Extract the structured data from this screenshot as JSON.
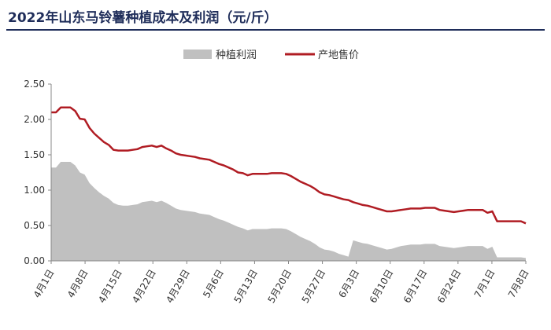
{
  "chart_data": {
    "type": "area+line",
    "title": "2022年山东马铃薯种植成本及利润（元/斤）",
    "legend_position": "top-center",
    "grid": false,
    "ylim": [
      0,
      2.5
    ],
    "y_ticks": [
      "0.00",
      "0.50",
      "1.00",
      "1.50",
      "2.00",
      "2.50"
    ],
    "x_tick_labels": [
      "4月1日",
      "4月8日",
      "4月15日",
      "4月22日",
      "4月29日",
      "5月6日",
      "5月13日",
      "5月20日",
      "5月27日",
      "6月3日",
      "6月10日",
      "6月17日",
      "6月24日",
      "7月1日",
      "7月8日"
    ],
    "series": [
      {
        "name": "种植利润",
        "kind": "area",
        "color": "#c0c0c0",
        "points": [
          [
            0,
            1.32
          ],
          [
            1,
            1.32
          ],
          [
            2,
            1.4
          ],
          [
            3,
            1.4
          ],
          [
            4,
            1.4
          ],
          [
            5,
            1.35
          ],
          [
            6,
            1.25
          ],
          [
            7,
            1.22
          ],
          [
            8,
            1.1
          ],
          [
            9,
            1.03
          ],
          [
            10,
            0.97
          ],
          [
            11,
            0.92
          ],
          [
            12,
            0.88
          ],
          [
            13,
            0.82
          ],
          [
            14,
            0.79
          ],
          [
            15,
            0.78
          ],
          [
            16,
            0.78
          ],
          [
            17,
            0.79
          ],
          [
            18,
            0.8
          ],
          [
            19,
            0.83
          ],
          [
            20,
            0.84
          ],
          [
            21,
            0.85
          ],
          [
            22,
            0.83
          ],
          [
            23,
            0.85
          ],
          [
            24,
            0.82
          ],
          [
            25,
            0.78
          ],
          [
            26,
            0.74
          ],
          [
            27,
            0.72
          ],
          [
            28,
            0.71
          ],
          [
            29,
            0.7
          ],
          [
            30,
            0.69
          ],
          [
            31,
            0.67
          ],
          [
            32,
            0.66
          ],
          [
            33,
            0.65
          ],
          [
            34,
            0.62
          ],
          [
            35,
            0.59
          ],
          [
            36,
            0.57
          ],
          [
            37,
            0.54
          ],
          [
            38,
            0.51
          ],
          [
            39,
            0.48
          ],
          [
            40,
            0.46
          ],
          [
            41,
            0.43
          ],
          [
            42,
            0.45
          ],
          [
            43,
            0.45
          ],
          [
            44,
            0.45
          ],
          [
            45,
            0.45
          ],
          [
            46,
            0.46
          ],
          [
            47,
            0.46
          ],
          [
            48,
            0.46
          ],
          [
            49,
            0.45
          ],
          [
            50,
            0.42
          ],
          [
            51,
            0.38
          ],
          [
            52,
            0.34
          ],
          [
            53,
            0.31
          ],
          [
            54,
            0.28
          ],
          [
            55,
            0.24
          ],
          [
            56,
            0.19
          ],
          [
            57,
            0.16
          ],
          [
            58,
            0.15
          ],
          [
            59,
            0.13
          ],
          [
            60,
            0.1
          ],
          [
            61,
            0.08
          ],
          [
            62,
            0.06
          ],
          [
            63,
            0.29
          ],
          [
            64,
            0.27
          ],
          [
            65,
            0.25
          ],
          [
            66,
            0.24
          ],
          [
            67,
            0.22
          ],
          [
            68,
            0.2
          ],
          [
            69,
            0.18
          ],
          [
            70,
            0.16
          ],
          [
            71,
            0.17
          ],
          [
            72,
            0.19
          ],
          [
            73,
            0.21
          ],
          [
            74,
            0.22
          ],
          [
            75,
            0.23
          ],
          [
            76,
            0.23
          ],
          [
            77,
            0.23
          ],
          [
            78,
            0.24
          ],
          [
            79,
            0.24
          ],
          [
            80,
            0.24
          ],
          [
            81,
            0.21
          ],
          [
            82,
            0.2
          ],
          [
            83,
            0.19
          ],
          [
            84,
            0.18
          ],
          [
            85,
            0.19
          ],
          [
            86,
            0.2
          ],
          [
            87,
            0.21
          ],
          [
            88,
            0.21
          ],
          [
            89,
            0.21
          ],
          [
            90,
            0.21
          ],
          [
            91,
            0.17
          ],
          [
            92,
            0.2
          ],
          [
            93,
            0.05
          ],
          [
            94,
            0.05
          ],
          [
            95,
            0.05
          ],
          [
            96,
            0.05
          ],
          [
            97,
            0.05
          ],
          [
            98,
            0.05
          ],
          [
            99,
            0.04
          ]
        ]
      },
      {
        "name": "产地售价",
        "kind": "line",
        "color": "#b01c23",
        "points": [
          [
            0,
            2.1
          ],
          [
            1,
            2.1
          ],
          [
            2,
            2.17
          ],
          [
            3,
            2.17
          ],
          [
            4,
            2.17
          ],
          [
            5,
            2.12
          ],
          [
            6,
            2.01
          ],
          [
            7,
            2.0
          ],
          [
            8,
            1.88
          ],
          [
            9,
            1.8
          ],
          [
            10,
            1.74
          ],
          [
            11,
            1.68
          ],
          [
            12,
            1.64
          ],
          [
            13,
            1.57
          ],
          [
            14,
            1.56
          ],
          [
            15,
            1.56
          ],
          [
            16,
            1.56
          ],
          [
            17,
            1.57
          ],
          [
            18,
            1.58
          ],
          [
            19,
            1.61
          ],
          [
            20,
            1.62
          ],
          [
            21,
            1.63
          ],
          [
            22,
            1.61
          ],
          [
            23,
            1.63
          ],
          [
            24,
            1.59
          ],
          [
            25,
            1.56
          ],
          [
            26,
            1.52
          ],
          [
            27,
            1.5
          ],
          [
            28,
            1.49
          ],
          [
            29,
            1.48
          ],
          [
            30,
            1.47
          ],
          [
            31,
            1.45
          ],
          [
            32,
            1.44
          ],
          [
            33,
            1.43
          ],
          [
            34,
            1.4
          ],
          [
            35,
            1.37
          ],
          [
            36,
            1.35
          ],
          [
            37,
            1.32
          ],
          [
            38,
            1.29
          ],
          [
            39,
            1.25
          ],
          [
            40,
            1.24
          ],
          [
            41,
            1.21
          ],
          [
            42,
            1.23
          ],
          [
            43,
            1.23
          ],
          [
            44,
            1.23
          ],
          [
            45,
            1.23
          ],
          [
            46,
            1.24
          ],
          [
            47,
            1.24
          ],
          [
            48,
            1.24
          ],
          [
            49,
            1.23
          ],
          [
            50,
            1.2
          ],
          [
            51,
            1.16
          ],
          [
            52,
            1.12
          ],
          [
            53,
            1.09
          ],
          [
            54,
            1.06
          ],
          [
            55,
            1.02
          ],
          [
            56,
            0.97
          ],
          [
            57,
            0.94
          ],
          [
            58,
            0.93
          ],
          [
            59,
            0.91
          ],
          [
            60,
            0.89
          ],
          [
            61,
            0.87
          ],
          [
            62,
            0.86
          ],
          [
            63,
            0.83
          ],
          [
            64,
            0.81
          ],
          [
            65,
            0.79
          ],
          [
            66,
            0.78
          ],
          [
            67,
            0.76
          ],
          [
            68,
            0.74
          ],
          [
            69,
            0.72
          ],
          [
            70,
            0.7
          ],
          [
            71,
            0.7
          ],
          [
            72,
            0.71
          ],
          [
            73,
            0.72
          ],
          [
            74,
            0.73
          ],
          [
            75,
            0.74
          ],
          [
            76,
            0.74
          ],
          [
            77,
            0.74
          ],
          [
            78,
            0.75
          ],
          [
            79,
            0.75
          ],
          [
            80,
            0.75
          ],
          [
            81,
            0.72
          ],
          [
            82,
            0.71
          ],
          [
            83,
            0.7
          ],
          [
            84,
            0.69
          ],
          [
            85,
            0.7
          ],
          [
            86,
            0.71
          ],
          [
            87,
            0.72
          ],
          [
            88,
            0.72
          ],
          [
            89,
            0.72
          ],
          [
            90,
            0.72
          ],
          [
            91,
            0.68
          ],
          [
            92,
            0.7
          ],
          [
            93,
            0.56
          ],
          [
            94,
            0.56
          ],
          [
            95,
            0.56
          ],
          [
            96,
            0.56
          ],
          [
            97,
            0.56
          ],
          [
            98,
            0.56
          ],
          [
            99,
            0.53
          ]
        ]
      }
    ]
  }
}
